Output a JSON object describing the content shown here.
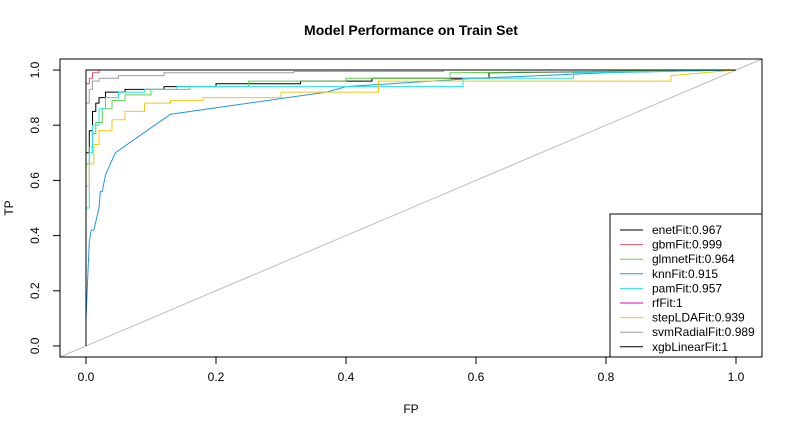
{
  "chart_data": {
    "type": "line",
    "title": "Model Performance on Train Set",
    "xlabel": "FP",
    "ylabel": "TP",
    "xlim": [
      -0.04,
      1.04
    ],
    "ylim": [
      -0.04,
      1.04
    ],
    "xticks": [
      0.0,
      0.2,
      0.4,
      0.6,
      0.8,
      1.0
    ],
    "xtick_labels": [
      "0.0",
      "0.2",
      "0.4",
      "0.6",
      "0.8",
      "1.0"
    ],
    "yticks": [
      0.0,
      0.2,
      0.4,
      0.6,
      0.8,
      1.0
    ],
    "ytick_labels": [
      "0.0",
      "0.2",
      "0.4",
      "0.6",
      "0.8",
      "1.0"
    ],
    "grid": false,
    "legend_position": "bottom-right",
    "reference_line": {
      "x": [
        -0.04,
        1.04
      ],
      "y": [
        -0.04,
        1.04
      ],
      "color": "#bebebe"
    },
    "series": [
      {
        "name": "enetFit:0.967",
        "color": "#000000",
        "x": [
          0,
          0,
          0.005,
          0.005,
          0.01,
          0.01,
          0.015,
          0.015,
          0.02,
          0.02,
          0.03,
          0.03,
          0.06,
          0.06,
          0.12,
          0.12,
          0.2,
          0.2,
          0.33,
          0.33,
          0.44,
          0.44,
          0.62,
          0.62,
          1.0
        ],
        "y": [
          0,
          0.7,
          0.7,
          0.78,
          0.78,
          0.85,
          0.85,
          0.88,
          0.88,
          0.9,
          0.9,
          0.92,
          0.92,
          0.93,
          0.93,
          0.94,
          0.94,
          0.95,
          0.95,
          0.96,
          0.96,
          0.97,
          0.97,
          0.99,
          1.0
        ]
      },
      {
        "name": "gbmFit:0.999",
        "color": "#df536b",
        "x": [
          0,
          0,
          0.005,
          0.005,
          0.01,
          0.01,
          0.02,
          0.02,
          1.0
        ],
        "y": [
          0,
          0.95,
          0.95,
          0.97,
          0.97,
          0.99,
          0.99,
          1.0,
          1.0
        ]
      },
      {
        "name": "glmnetFit:0.964",
        "color": "#61d04f",
        "x": [
          0,
          0,
          0.005,
          0.005,
          0.01,
          0.01,
          0.015,
          0.015,
          0.025,
          0.025,
          0.04,
          0.04,
          0.06,
          0.06,
          0.1,
          0.1,
          0.16,
          0.16,
          0.25,
          0.25,
          0.4,
          0.4,
          0.56,
          0.56,
          1.0
        ],
        "y": [
          0,
          0.66,
          0.66,
          0.72,
          0.72,
          0.77,
          0.77,
          0.81,
          0.81,
          0.86,
          0.86,
          0.89,
          0.89,
          0.91,
          0.91,
          0.93,
          0.93,
          0.94,
          0.94,
          0.96,
          0.96,
          0.97,
          0.97,
          0.99,
          1.0
        ]
      },
      {
        "name": "knnFit:0.915",
        "color": "#2297e6",
        "x": [
          0,
          0.005,
          0.008,
          0.012,
          0.02,
          0.022,
          0.025,
          0.03,
          0.045,
          0.13,
          0.37,
          0.4,
          0.6,
          0.8,
          1.0
        ],
        "y": [
          0.1,
          0.38,
          0.42,
          0.42,
          0.5,
          0.56,
          0.56,
          0.62,
          0.7,
          0.84,
          0.92,
          0.94,
          0.97,
          0.99,
          1.0
        ]
      },
      {
        "name": "pamFit:0.957",
        "color": "#28e2e5",
        "x": [
          0,
          0,
          0.005,
          0.005,
          0.01,
          0.01,
          0.02,
          0.02,
          0.03,
          0.03,
          0.05,
          0.05,
          0.09,
          0.09,
          0.14,
          0.14,
          0.58,
          0.58,
          0.75,
          0.75,
          1.0
        ],
        "y": [
          0,
          0.5,
          0.5,
          0.7,
          0.7,
          0.8,
          0.8,
          0.86,
          0.86,
          0.9,
          0.9,
          0.92,
          0.92,
          0.93,
          0.93,
          0.94,
          0.94,
          0.97,
          0.97,
          0.99,
          1.0
        ]
      },
      {
        "name": "rfFit:1",
        "color": "#cd0bbc",
        "x": [
          0,
          0,
          1.0
        ],
        "y": [
          0,
          1.0,
          1.0
        ]
      },
      {
        "name": "stepLDAFit:0.939",
        "color": "#f5c710",
        "x": [
          0,
          0,
          0.005,
          0.005,
          0.012,
          0.012,
          0.02,
          0.02,
          0.04,
          0.04,
          0.06,
          0.06,
          0.09,
          0.09,
          0.13,
          0.13,
          0.18,
          0.18,
          0.3,
          0.3,
          0.45,
          0.45,
          0.9,
          0.9,
          1.0
        ],
        "y": [
          0,
          0.58,
          0.58,
          0.66,
          0.66,
          0.73,
          0.73,
          0.78,
          0.78,
          0.82,
          0.82,
          0.85,
          0.85,
          0.88,
          0.88,
          0.89,
          0.89,
          0.9,
          0.9,
          0.92,
          0.92,
          0.96,
          0.96,
          0.98,
          1.0
        ]
      },
      {
        "name": "svmRadialFit:0.989",
        "color": "#9e9e9e",
        "x": [
          0,
          0,
          0.005,
          0.005,
          0.01,
          0.01,
          0.02,
          0.02,
          0.05,
          0.05,
          0.12,
          0.12,
          0.32,
          0.32,
          0.55,
          0.55,
          1.0
        ],
        "y": [
          0,
          0.88,
          0.88,
          0.93,
          0.93,
          0.96,
          0.96,
          0.97,
          0.97,
          0.98,
          0.98,
          0.99,
          0.99,
          0.995,
          0.995,
          1.0,
          1.0
        ]
      },
      {
        "name": "xgbLinearFit:1",
        "color": "#000000",
        "x": [
          0,
          0,
          1.0
        ],
        "y": [
          0,
          1.0,
          1.0
        ]
      }
    ]
  }
}
